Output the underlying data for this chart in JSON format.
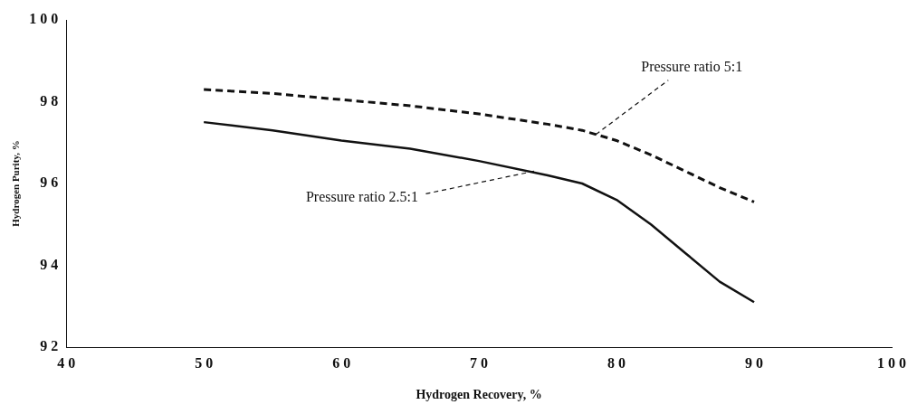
{
  "chart_data": {
    "type": "line",
    "xlabel": "Hydrogen Recovery, %",
    "ylabel": "Hydrogen Purity, %",
    "xlim": [
      40,
      100
    ],
    "xticks": [
      40,
      50,
      60,
      70,
      80,
      90,
      100
    ],
    "ylim": [
      92,
      100
    ],
    "yticks": [
      92,
      94,
      96,
      98,
      100
    ],
    "grid": false,
    "legend": false,
    "marker": "none",
    "series": [
      {
        "color": "#111111",
        "line_style": "solid",
        "x": [
          50,
          55,
          60,
          65,
          70,
          75,
          77.5,
          80,
          82.5,
          85,
          87.5,
          90
        ],
        "values": [
          97.5,
          97.3,
          97.05,
          96.85,
          96.55,
          96.2,
          96.0,
          95.6,
          95.0,
          94.3,
          93.6,
          93.1
        ]
      },
      {
        "color": "#111111",
        "line_style": "dashed",
        "x": [
          50,
          55,
          60,
          65,
          70,
          75,
          77.5,
          80,
          82.5,
          85,
          87.5,
          90
        ],
        "values": [
          98.3,
          98.2,
          98.05,
          97.9,
          97.7,
          97.45,
          97.3,
          97.05,
          96.7,
          96.3,
          95.9,
          95.55
        ]
      }
    ],
    "annotations": [
      {
        "text": "Pressure ratio 5:1",
        "x": 78.5,
        "y": 97.2
      },
      {
        "text": "Pressure ratio 2.5:1",
        "x": 74,
        "y": 96.3
      }
    ]
  }
}
